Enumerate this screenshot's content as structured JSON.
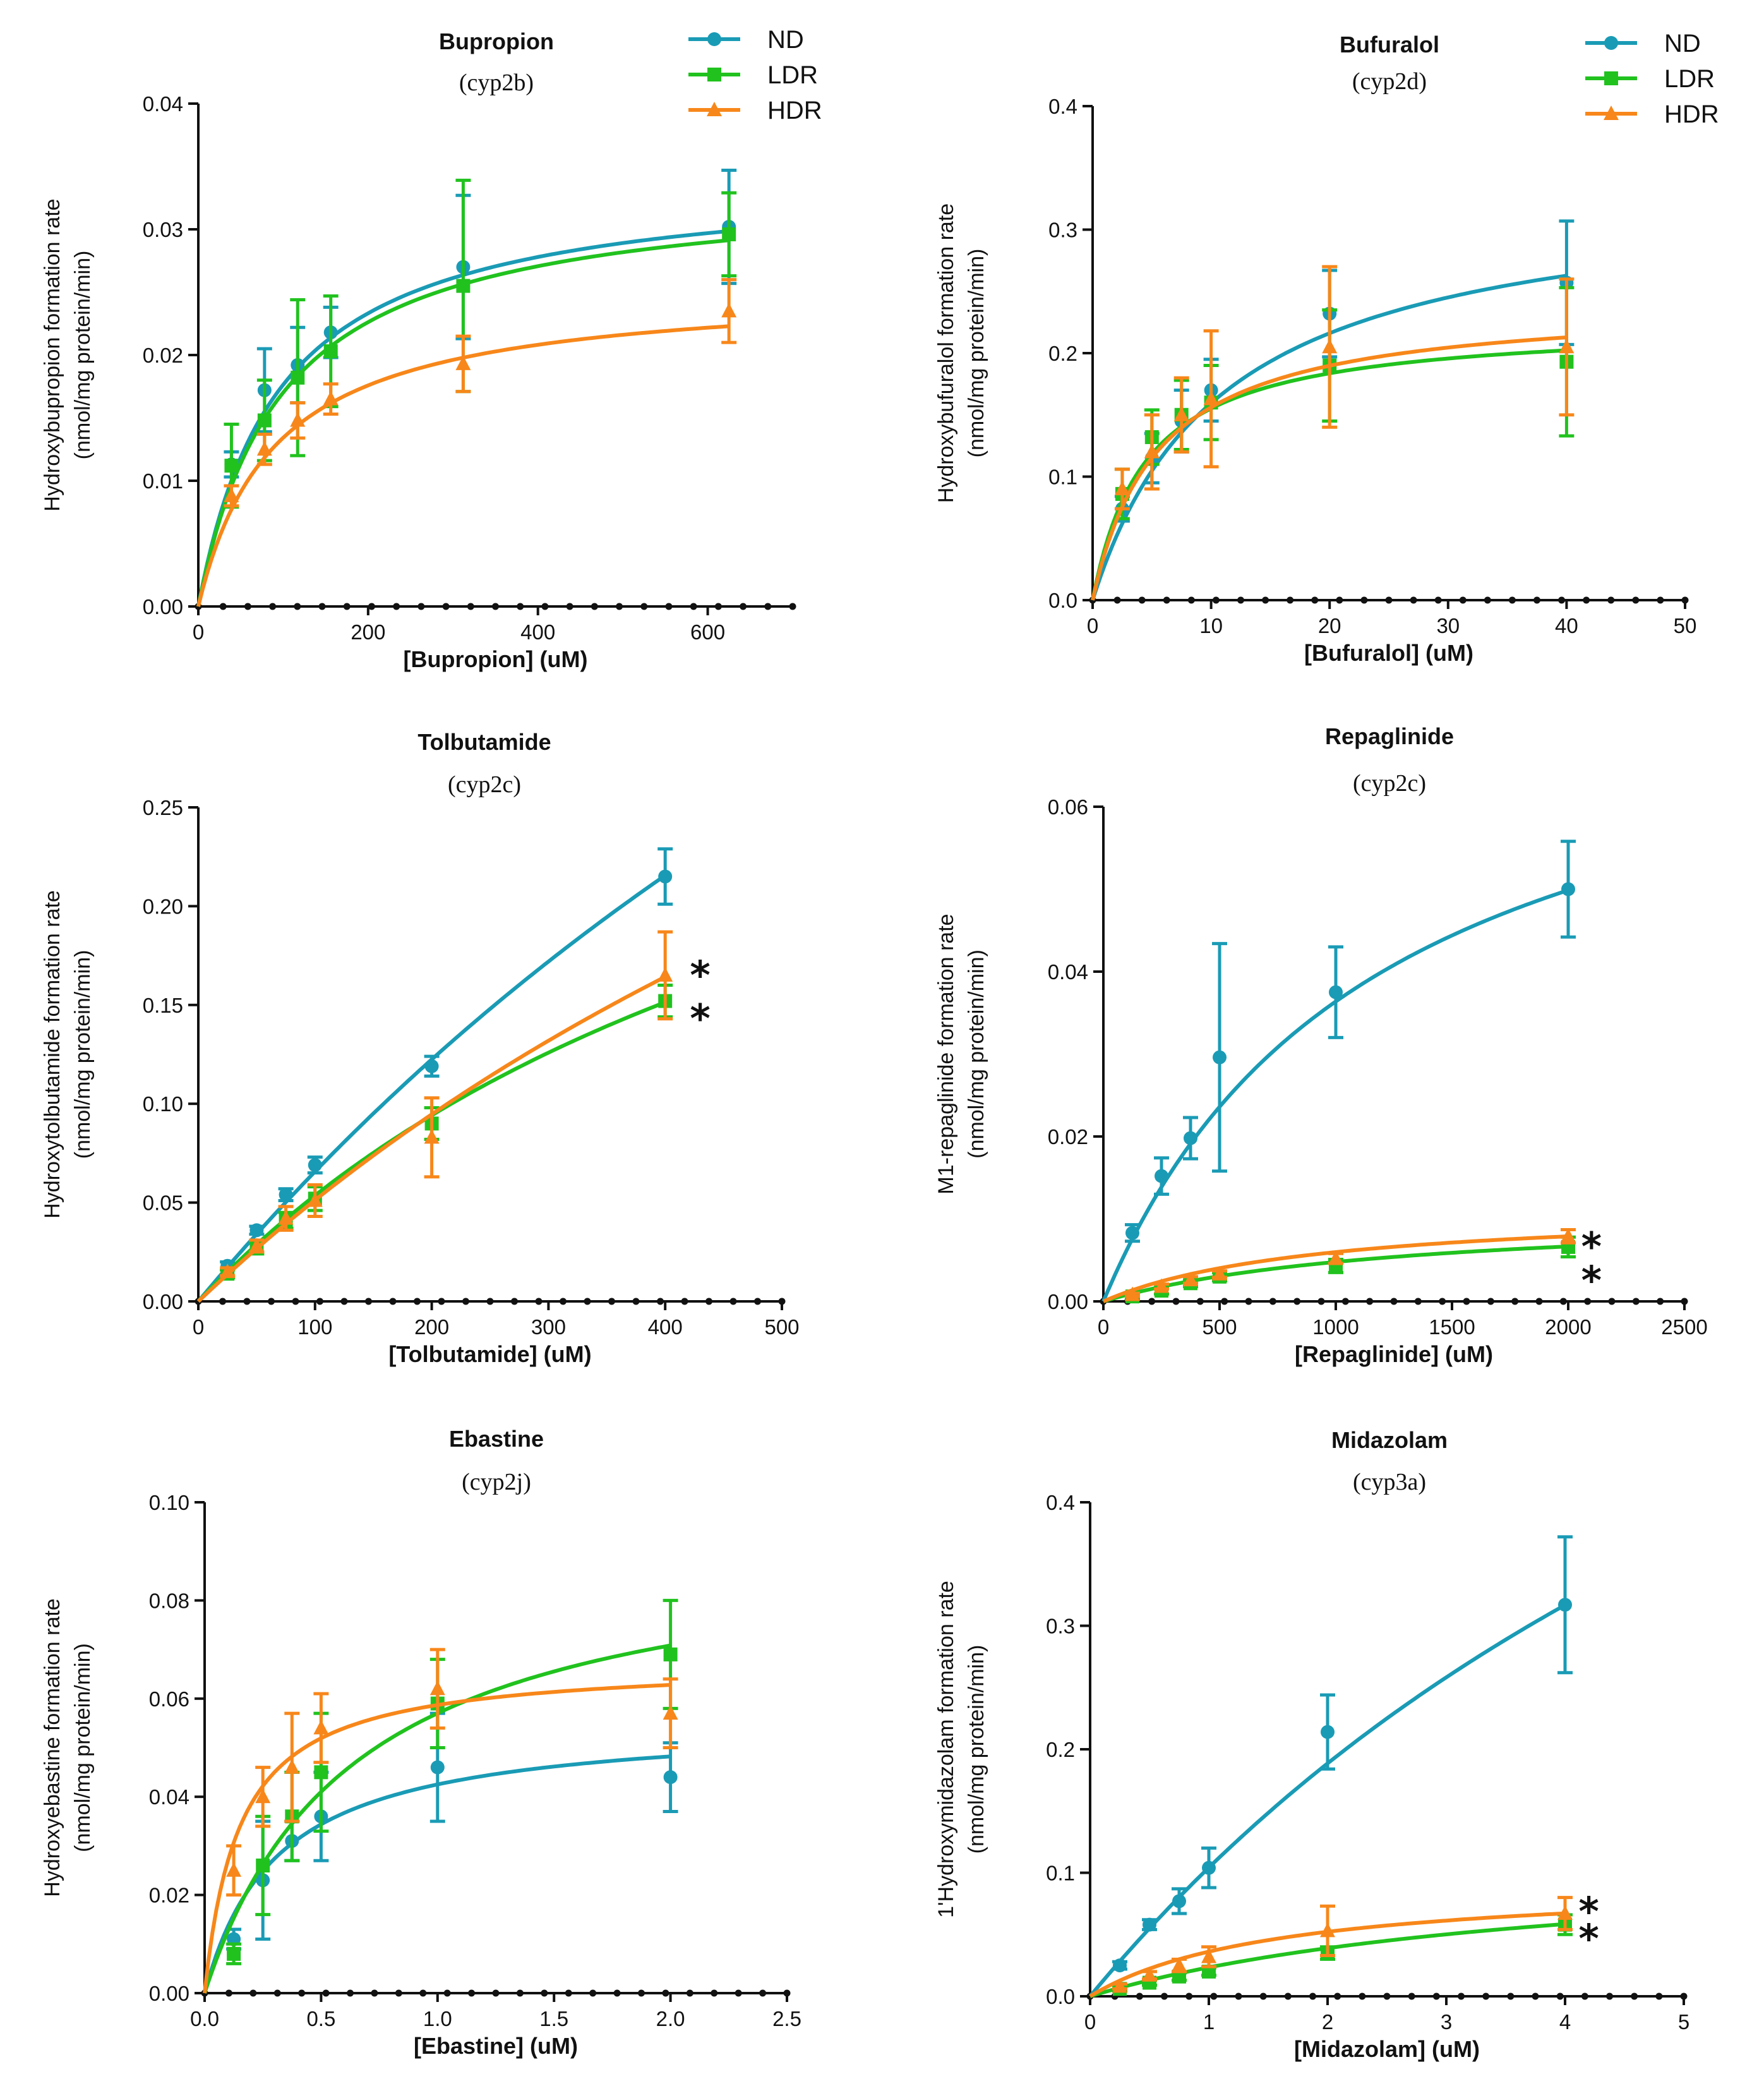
{
  "colors": {
    "ND": "#1a9bb5",
    "LDR": "#21c21e",
    "HDR": "#f7871a"
  },
  "chart_data": [
    {
      "type": "line",
      "title": "Bupropion",
      "subtitle": "(cyp2b)",
      "xlabel": "[Bupropion] (uM)",
      "ylabel": [
        "Hydroxybupropion formation rate",
        "(nmol/mg protein/min)"
      ],
      "xlim": [
        0,
        700
      ],
      "ylim": [
        0,
        0.04
      ],
      "xticks": [
        "0",
        "200",
        "400",
        "600"
      ],
      "xtick_values": [
        0,
        200,
        400,
        600
      ],
      "yticks": [
        "0.00",
        "0.01",
        "0.02",
        "0.03",
        "0.04"
      ],
      "ytick_values": [
        0,
        0.01,
        0.02,
        0.03,
        0.04
      ],
      "legend": [
        "ND",
        "LDR",
        "HDR"
      ],
      "series": [
        {
          "name": "ND",
          "marker": "circle",
          "x": [
            39,
            78,
            117,
            156,
            312,
            625
          ],
          "y": [
            0.0113,
            0.0172,
            0.0192,
            0.0218,
            0.027,
            0.0302
          ],
          "err": [
            0.001,
            0.0033,
            0.003,
            0.002,
            0.0057,
            0.0045
          ],
          "fit": {
            "vmax": 0.0344,
            "km": 95
          }
        },
        {
          "name": "LDR",
          "marker": "square",
          "x": [
            39,
            78,
            117,
            156,
            312,
            625
          ],
          "y": [
            0.0112,
            0.0148,
            0.0182,
            0.0203,
            0.0255,
            0.0296
          ],
          "err": [
            0.0033,
            0.0032,
            0.0062,
            0.0044,
            0.0084,
            0.0033
          ],
          "fit": {
            "vmax": 0.0337,
            "km": 98
          }
        },
        {
          "name": "HDR",
          "marker": "triangle",
          "x": [
            39,
            78,
            117,
            156,
            312,
            625
          ],
          "y": [
            0.0088,
            0.0125,
            0.0148,
            0.0165,
            0.0193,
            0.0235
          ],
          "err": [
            0.0008,
            0.0012,
            0.0014,
            0.0012,
            0.0022,
            0.0025
          ],
          "fit": {
            "vmax": 0.0255,
            "km": 90
          }
        }
      ],
      "annotations": []
    },
    {
      "type": "line",
      "title": "Bufuralol",
      "subtitle": "(cyp2d)",
      "xlabel": "[Bufuralol] (uM)",
      "ylabel": [
        "Hydroxybufuralol formation rate",
        "(nmol/mg protein/min)"
      ],
      "xlim": [
        0,
        50
      ],
      "ylim": [
        0,
        0.4
      ],
      "xticks": [
        "0",
        "10",
        "20",
        "30",
        "40",
        "50"
      ],
      "xtick_values": [
        0,
        10,
        20,
        30,
        40,
        50
      ],
      "yticks": [
        "0.0",
        "0.1",
        "0.2",
        "0.3",
        "0.4"
      ],
      "ytick_values": [
        0,
        0.1,
        0.2,
        0.3,
        0.4
      ],
      "legend": [
        "ND",
        "LDR",
        "HDR"
      ],
      "series": [
        {
          "name": "ND",
          "marker": "circle",
          "x": [
            2.5,
            5,
            7.5,
            10,
            20,
            40
          ],
          "y": [
            0.074,
            0.115,
            0.145,
            0.17,
            0.232,
            0.257
          ],
          "err": [
            0.01,
            0.02,
            0.025,
            0.025,
            0.035,
            0.05
          ],
          "fit": {
            "vmax": 0.335,
            "km": 11
          }
        },
        {
          "name": "LDR",
          "marker": "square",
          "x": [
            2.5,
            5,
            7.5,
            10,
            20,
            40
          ],
          "y": [
            0.086,
            0.132,
            0.15,
            0.16,
            0.19,
            0.193
          ],
          "err": [
            0.02,
            0.022,
            0.028,
            0.03,
            0.045,
            0.06
          ],
          "fit": {
            "vmax": 0.225,
            "km": 4.5
          }
        },
        {
          "name": "HDR",
          "marker": "triangle",
          "x": [
            2.5,
            5,
            7.5,
            10,
            20,
            40
          ],
          "y": [
            0.09,
            0.12,
            0.15,
            0.163,
            0.205,
            0.205
          ],
          "err": [
            0.016,
            0.03,
            0.03,
            0.055,
            0.065,
            0.055
          ],
          "fit": {
            "vmax": 0.242,
            "km": 5.5
          }
        }
      ],
      "annotations": []
    },
    {
      "type": "line",
      "title": "Tolbutamide",
      "subtitle": "(cyp2c)",
      "xlabel": "[Tolbutamide] (uM)",
      "ylabel": [
        "Hydroxytolbutamide formation rate",
        "(nmol/mg protein/min)"
      ],
      "xlim": [
        0,
        500
      ],
      "ylim": [
        0,
        0.25
      ],
      "xticks": [
        "0",
        "100",
        "200",
        "300",
        "400",
        "500"
      ],
      "xtick_values": [
        0,
        100,
        200,
        300,
        400,
        500
      ],
      "yticks": [
        "0.00",
        "0.05",
        "0.10",
        "0.15",
        "0.20",
        "0.25"
      ],
      "ytick_values": [
        0,
        0.05,
        0.1,
        0.15,
        0.2,
        0.25
      ],
      "legend": [],
      "series": [
        {
          "name": "ND",
          "marker": "circle",
          "x": [
            25,
            50,
            75,
            100,
            200,
            400
          ],
          "y": [
            0.018,
            0.036,
            0.054,
            0.069,
            0.119,
            0.215
          ],
          "err": [
            0.002,
            0.002,
            0.003,
            0.004,
            0.005,
            0.014
          ],
          "fit": {
            "vmax": 0.9,
            "km": 1270
          }
        },
        {
          "name": "LDR",
          "marker": "square",
          "x": [
            25,
            50,
            75,
            100,
            200,
            400
          ],
          "y": [
            0.014,
            0.027,
            0.041,
            0.052,
            0.09,
            0.152
          ],
          "err": [
            0.002,
            0.003,
            0.004,
            0.006,
            0.008,
            0.008
          ],
          "fit": {
            "vmax": 0.386,
            "km": 620
          }
        },
        {
          "name": "HDR",
          "marker": "triangle",
          "x": [
            25,
            50,
            75,
            100,
            200,
            400
          ],
          "y": [
            0.015,
            0.028,
            0.042,
            0.051,
            0.083,
            0.165
          ],
          "err": [
            0.002,
            0.003,
            0.006,
            0.008,
            0.02,
            0.022
          ],
          "fit": {
            "vmax": 0.62,
            "km": 1110
          }
        }
      ],
      "annotations": [
        {
          "text": "*",
          "x": 430,
          "y": 0.169
        },
        {
          "text": "*",
          "x": 430,
          "y": 0.147
        }
      ]
    },
    {
      "type": "line",
      "title": "Repaglinide",
      "subtitle": "(cyp2c)",
      "xlabel": "[Repaglinide] (uM)",
      "ylabel": [
        "M1-repaglinide formation rate",
        "(nmol/mg protein/min)"
      ],
      "xlim": [
        0,
        2500
      ],
      "ylim": [
        0,
        0.06
      ],
      "xticks": [
        "0",
        "500",
        "1000",
        "1500",
        "2000",
        "2500"
      ],
      "xtick_values": [
        0,
        500,
        1000,
        1500,
        2000,
        2500
      ],
      "yticks": [
        "0.00",
        "0.02",
        "0.04",
        "0.06"
      ],
      "ytick_values": [
        0,
        0.02,
        0.04,
        0.06
      ],
      "legend": [],
      "series": [
        {
          "name": "ND",
          "marker": "circle",
          "x": [
            125,
            250,
            375,
            500,
            1000,
            2000
          ],
          "y": [
            0.0083,
            0.0152,
            0.0198,
            0.0296,
            0.0375,
            0.05
          ],
          "err": [
            0.001,
            0.0022,
            0.0025,
            0.0138,
            0.0055,
            0.0058
          ],
          "fit": {
            "vmax": 0.0793,
            "km": 1180
          }
        },
        {
          "name": "LDR",
          "marker": "square",
          "x": [
            125,
            250,
            375,
            500,
            1000,
            2000
          ],
          "y": [
            0.0006,
            0.0013,
            0.0022,
            0.003,
            0.0043,
            0.0066
          ],
          "err": [
            0.0003,
            0.0004,
            0.0004,
            0.0005,
            0.0008,
            0.0012
          ],
          "fit": {
            "vmax": 0.011,
            "km": 1300
          }
        },
        {
          "name": "HDR",
          "marker": "triangle",
          "x": [
            125,
            250,
            375,
            500,
            1000,
            2000
          ],
          "y": [
            0.0008,
            0.0018,
            0.0026,
            0.0033,
            0.0052,
            0.0079
          ],
          "err": [
            0.0002,
            0.0003,
            0.0004,
            0.0004,
            0.0006,
            0.0008
          ],
          "fit": {
            "vmax": 0.0116,
            "km": 940
          }
        }
      ],
      "annotations": [
        {
          "text": "*",
          "x": 2100,
          "y": 0.0076
        },
        {
          "text": "*",
          "x": 2100,
          "y": 0.0035
        }
      ]
    },
    {
      "type": "line",
      "title": "Ebastine",
      "subtitle": "(cyp2j)",
      "xlabel": "[Ebastine] (uM)",
      "ylabel": [
        "Hydroxyebastine formation rate",
        "(nmol/mg protein/min)"
      ],
      "xlim": [
        0,
        2.5
      ],
      "ylim": [
        0,
        0.1
      ],
      "xticks": [
        "0.0",
        "0.5",
        "1.0",
        "1.5",
        "2.0",
        "2.5"
      ],
      "xtick_values": [
        0,
        0.5,
        1,
        1.5,
        2,
        2.5
      ],
      "yticks": [
        "0.00",
        "0.02",
        "0.04",
        "0.06",
        "0.08",
        "0.10"
      ],
      "ytick_values": [
        0,
        0.02,
        0.04,
        0.06,
        0.08,
        0.1
      ],
      "legend": [],
      "series": [
        {
          "name": "ND",
          "marker": "circle",
          "x": [
            0.125,
            0.25,
            0.375,
            0.5,
            1.0,
            2.0
          ],
          "y": [
            0.011,
            0.023,
            0.031,
            0.036,
            0.046,
            0.044
          ],
          "err": [
            0.002,
            0.012,
            0.004,
            0.009,
            0.011,
            0.007
          ],
          "fit": {
            "vmax": 0.0557,
            "km": 0.31
          }
        },
        {
          "name": "LDR",
          "marker": "square",
          "x": [
            0.125,
            0.25,
            0.375,
            0.5,
            1.0,
            2.0
          ],
          "y": [
            0.008,
            0.026,
            0.036,
            0.045,
            0.059,
            0.069
          ],
          "err": [
            0.002,
            0.01,
            0.009,
            0.012,
            0.009,
            0.011
          ],
          "fit": {
            "vmax": 0.0935,
            "km": 0.64
          }
        },
        {
          "name": "HDR",
          "marker": "triangle",
          "x": [
            0.125,
            0.25,
            0.375,
            0.5,
            1.0,
            2.0
          ],
          "y": [
            0.025,
            0.04,
            0.046,
            0.054,
            0.062,
            0.057
          ],
          "err": [
            0.005,
            0.006,
            0.011,
            0.007,
            0.008,
            0.007
          ],
          "fit": {
            "vmax": 0.0675,
            "km": 0.15
          }
        }
      ],
      "annotations": []
    },
    {
      "type": "line",
      "title": "Midazolam",
      "subtitle": "(cyp3a)",
      "xlabel": "[Midazolam] (uM)",
      "ylabel": [
        "1'Hydroxymidazolam formation rate",
        "(nmol/mg protein/min)"
      ],
      "xlim": [
        0,
        5
      ],
      "ylim": [
        0,
        0.4
      ],
      "xticks": [
        "0",
        "1",
        "2",
        "3",
        "4",
        "5"
      ],
      "xtick_values": [
        0,
        1,
        2,
        3,
        4,
        5
      ],
      "yticks": [
        "0.0",
        "0.1",
        "0.2",
        "0.3",
        "0.4"
      ],
      "ytick_values": [
        0,
        0.1,
        0.2,
        0.3,
        0.4
      ],
      "legend": [],
      "series": [
        {
          "name": "ND",
          "marker": "circle",
          "x": [
            0.25,
            0.5,
            0.75,
            1,
            2,
            4
          ],
          "y": [
            0.025,
            0.058,
            0.077,
            0.104,
            0.214,
            0.317
          ],
          "err": [
            0.003,
            0.004,
            0.01,
            0.016,
            0.03,
            0.055
          ],
          "fit": {
            "vmax": 0.99,
            "km": 8.5
          }
        },
        {
          "name": "LDR",
          "marker": "square",
          "x": [
            0.25,
            0.5,
            0.75,
            1,
            2,
            4
          ],
          "y": [
            0.006,
            0.011,
            0.016,
            0.02,
            0.035,
            0.058
          ],
          "err": [
            0.002,
            0.002,
            0.003,
            0.003,
            0.005,
            0.008
          ],
          "fit": {
            "vmax": 0.117,
            "km": 4.0
          }
        },
        {
          "name": "HDR",
          "marker": "triangle",
          "x": [
            0.25,
            0.5,
            0.75,
            1,
            2,
            4
          ],
          "y": [
            0.008,
            0.017,
            0.025,
            0.032,
            0.053,
            0.067
          ],
          "err": [
            0.002,
            0.003,
            0.005,
            0.008,
            0.02,
            0.013
          ],
          "fit": {
            "vmax": 0.094,
            "km": 1.6
          }
        }
      ],
      "annotations": [
        {
          "text": "*",
          "x": 4.2,
          "y": 0.075
        },
        {
          "text": "*",
          "x": 4.2,
          "y": 0.053
        }
      ]
    }
  ]
}
